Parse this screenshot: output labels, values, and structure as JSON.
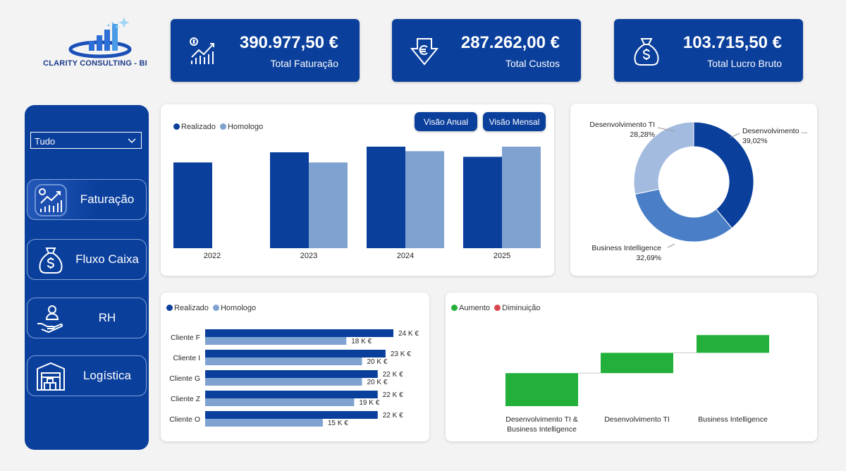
{
  "brand": {
    "name": "CLARITY CONSULTING - BI"
  },
  "kpis": [
    {
      "value": "390.977,50 €",
      "label": "Total Faturação",
      "icon": "chart-growth-icon"
    },
    {
      "value": "287.262,00 €",
      "label": "Total Custos",
      "icon": "euro-down-arrow-icon"
    },
    {
      "value": "103.715,50 €",
      "label": "Total Lucro Bruto",
      "icon": "money-bag-icon"
    }
  ],
  "sidebar": {
    "filter_value": "Tudo",
    "items": [
      {
        "label": "Faturação",
        "icon": "chart-growth-icon"
      },
      {
        "label": "Fluxo Caixa",
        "icon": "money-bag-icon"
      },
      {
        "label": "RH",
        "icon": "hand-person-icon"
      },
      {
        "label": "Logística",
        "icon": "warehouse-icon"
      }
    ]
  },
  "colors": {
    "realizado": "#0a3f9c",
    "homologo": "#7fa2d0",
    "aumento": "#22b03a",
    "diminuicao": "#d9464b",
    "bi": "#4a7fc8",
    "ti": "#a3bbdf"
  },
  "annual": {
    "legend": [
      "Realizado",
      "Homologo"
    ],
    "buttons": [
      "Visão Anual",
      "Visão Mensal"
    ],
    "chart_data": {
      "type": "bar",
      "categories": [
        "2022",
        "2023",
        "2024",
        "2025"
      ],
      "series": [
        {
          "name": "Realizado",
          "values": [
            76,
            85,
            90,
            81
          ]
        },
        {
          "name": "Homologo",
          "values": [
            null,
            76,
            86,
            90
          ]
        }
      ],
      "ylim": [
        0,
        100
      ]
    }
  },
  "donut": {
    "chart_data": {
      "type": "pie",
      "slices": [
        {
          "label": "Desenvolvimento ...",
          "value": 39.02,
          "display": "39,02%"
        },
        {
          "label": "Business Intelligence",
          "value": 32.69,
          "display": "32,69%"
        },
        {
          "label": "Desenvolvimento TI",
          "value": 28.28,
          "display": "28,28%"
        }
      ]
    }
  },
  "clients": {
    "legend": [
      "Realizado",
      "Homologo"
    ],
    "chart_data": {
      "type": "bar",
      "categories": [
        "Cliente F",
        "Cliente I",
        "Cliente G",
        "Cliente Z",
        "Cliente O"
      ],
      "series": [
        {
          "name": "Realizado",
          "values": [
            24,
            23,
            22,
            22,
            22
          ],
          "labels": [
            "24 K €",
            "23 K €",
            "22 K €",
            "22 K €",
            "22 K €"
          ]
        },
        {
          "name": "Homologo",
          "values": [
            18,
            20,
            20,
            19,
            15
          ],
          "labels": [
            "18 K €",
            "20 K €",
            "20 K €",
            "19 K €",
            "15 K €"
          ]
        }
      ],
      "xlim": [
        0,
        24
      ]
    }
  },
  "waterfall": {
    "legend": [
      "Aumento",
      "Diminuição"
    ],
    "chart_data": {
      "type": "bar",
      "categories": [
        "Desenvolvimento TI & Business Intelligence",
        "Desenvolvimento TI",
        "Business Intelligence"
      ],
      "label_lines": [
        [
          "Desenvolvimento TI &",
          "Business Intelligence"
        ],
        [
          "Desenvolvimento TI"
        ],
        [
          "Business Intelligence"
        ]
      ],
      "steps": [
        {
          "start": 0,
          "end": 39
        },
        {
          "start": 39,
          "end": 63
        },
        {
          "start": 63,
          "end": 84
        }
      ],
      "ylim": [
        0,
        100
      ]
    }
  }
}
